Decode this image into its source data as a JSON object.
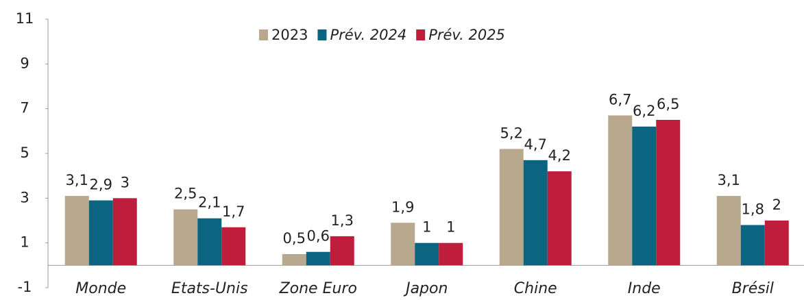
{
  "chart_data": {
    "type": "bar",
    "categories": [
      "Monde",
      "Etats-Unis",
      "Zone Euro",
      "Japon",
      "Chine",
      "Inde",
      "Brésil"
    ],
    "series": [
      {
        "name": "2023",
        "color": "#b8a88e",
        "values": [
          3.1,
          2.5,
          0.5,
          1.9,
          5.2,
          6.7,
          3.1
        ],
        "value_labels": [
          "3,1",
          "2,5",
          "0,5",
          "1,9",
          "5,2",
          "6,7",
          "3,1"
        ]
      },
      {
        "name": "Prév. 2024",
        "color": "#0b6480",
        "values": [
          2.9,
          2.1,
          0.6,
          1,
          4.7,
          6.2,
          1.8
        ],
        "value_labels": [
          "2,9",
          "2,1",
          "0,6",
          "1",
          "4,7",
          "6,2",
          "1,8"
        ]
      },
      {
        "name": "Prév. 2025",
        "color": "#be1e3c",
        "values": [
          3,
          1.7,
          1.3,
          1,
          4.2,
          6.5,
          2
        ],
        "value_labels": [
          "3",
          "1,7",
          "1,3",
          "1",
          "4,2",
          "6,5",
          "2"
        ]
      }
    ],
    "ylim": [
      -1,
      11
    ],
    "yticks": [
      -1,
      1,
      3,
      5,
      7,
      9,
      11
    ],
    "grid": false,
    "legend": "top"
  }
}
